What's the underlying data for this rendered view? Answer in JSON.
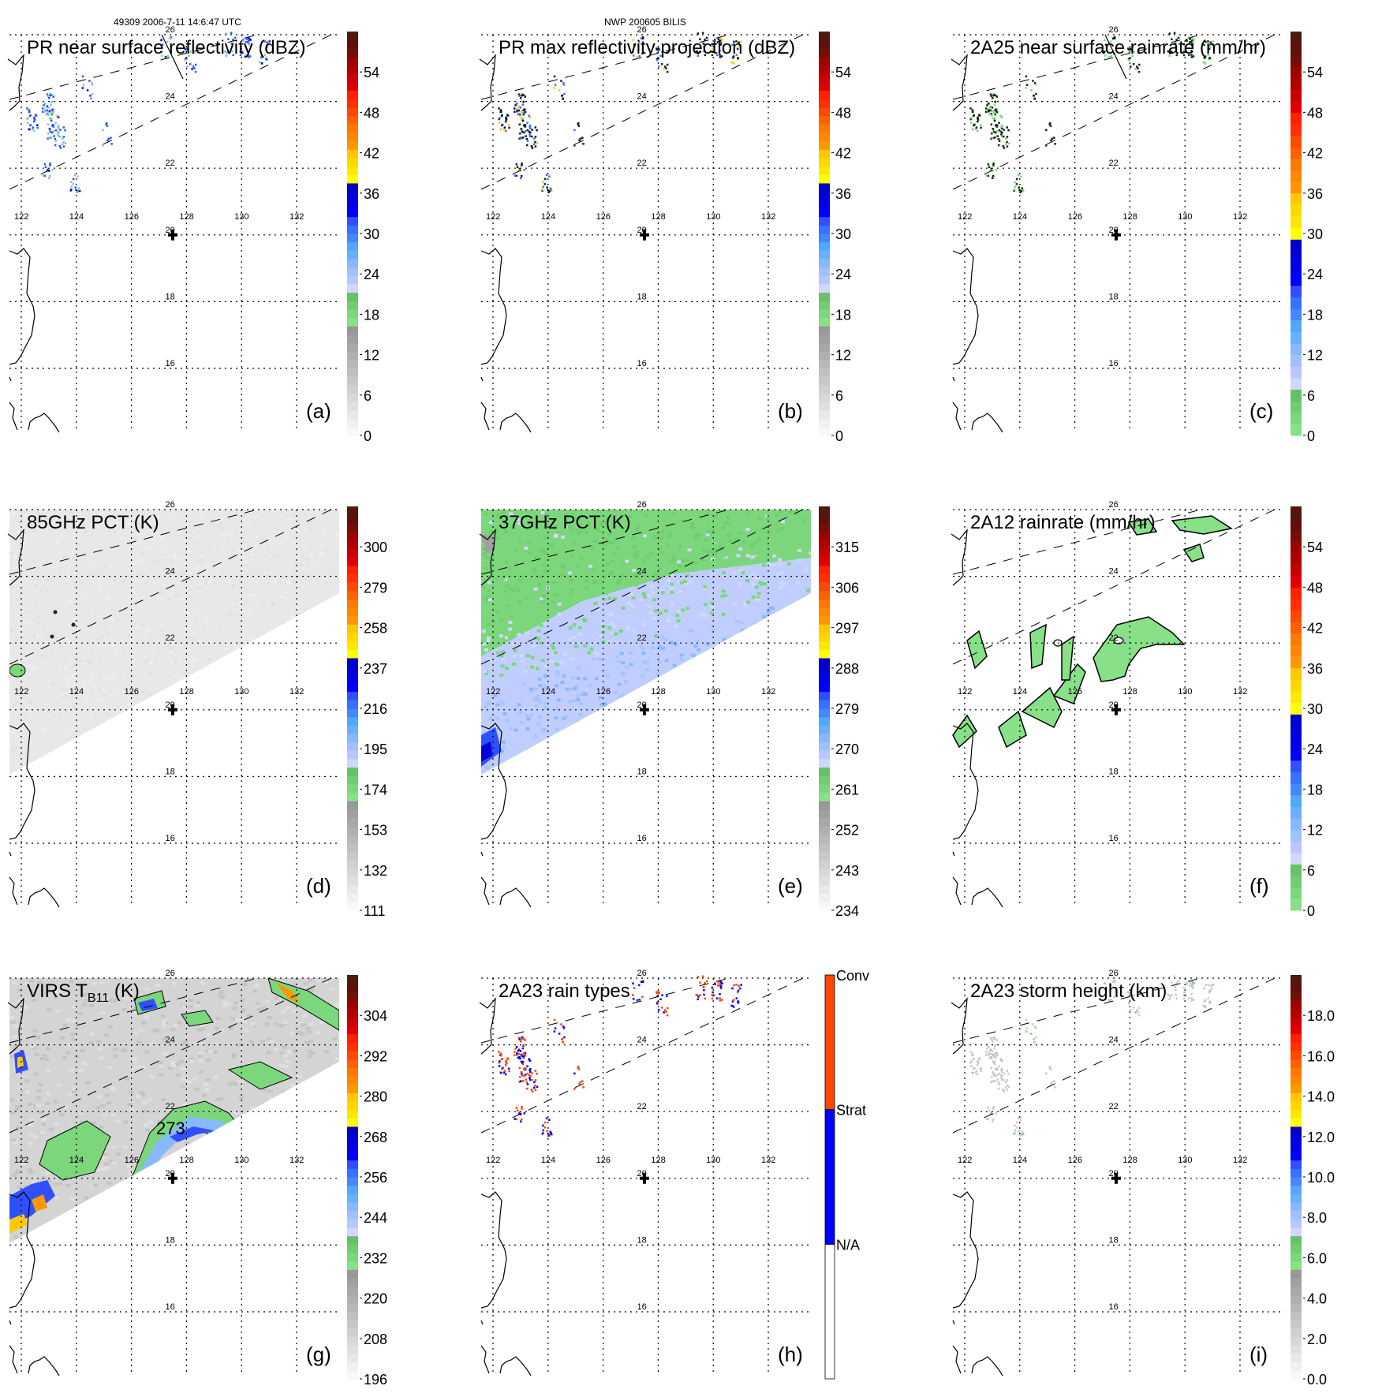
{
  "figure": {
    "header_left": "49309 2006-7-11 14:6:47 UTC",
    "header_center": "NWP 200605 BILIS"
  },
  "chart_data": [
    {
      "id": "a",
      "type": "heatmap",
      "letter": "(a)",
      "title": "PR near surface reflectivity (dBZ)",
      "colorbar": {
        "ticks": [
          "0",
          "6",
          "12",
          "18",
          "24",
          "30",
          "36",
          "42",
          "48",
          "54"
        ],
        "range": [
          0,
          60
        ]
      },
      "xlabel_ticks": [
        "122",
        "124",
        "126",
        "128",
        "130",
        "132"
      ],
      "ylabel_ticks": [
        "26",
        "24",
        "22",
        "20",
        "18",
        "16"
      ],
      "data_kind": "pr_scatter",
      "swath": "pr"
    },
    {
      "id": "b",
      "type": "heatmap",
      "letter": "(b)",
      "title": "PR max reflectivity projection (dBZ)",
      "colorbar": {
        "ticks": [
          "0",
          "6",
          "12",
          "18",
          "24",
          "30",
          "36",
          "42",
          "48",
          "54"
        ],
        "range": [
          0,
          60
        ]
      },
      "xlabel_ticks": [
        "122",
        "124",
        "126",
        "128",
        "130",
        "132"
      ],
      "ylabel_ticks": [
        "26",
        "24",
        "22",
        "20",
        "18",
        "16"
      ],
      "data_kind": "pr_contour",
      "swath": "pr"
    },
    {
      "id": "c",
      "type": "heatmap",
      "letter": "(c)",
      "title": "2A25 near surface rainrate (mm/hr)",
      "colorbar": {
        "ticks": [
          "0",
          "6",
          "12",
          "18",
          "24",
          "30",
          "36",
          "42",
          "48",
          "54"
        ],
        "range": [
          0,
          60
        ]
      },
      "xlabel_ticks": [
        "122",
        "124",
        "126",
        "128",
        "130",
        "132"
      ],
      "ylabel_ticks": [
        "26",
        "24",
        "22",
        "20",
        "18",
        "16"
      ],
      "data_kind": "pr_contour_green",
      "swath": "pr"
    },
    {
      "id": "d",
      "type": "heatmap",
      "letter": "(d)",
      "title": "85GHz PCT (K)",
      "colorbar": {
        "ticks": [
          "111",
          "132",
          "153",
          "174",
          "195",
          "216",
          "237",
          "258",
          "279",
          "300"
        ],
        "range": [
          300,
          90
        ]
      },
      "xlabel_ticks": [
        "122",
        "124",
        "126",
        "128",
        "130",
        "132"
      ],
      "ylabel_ticks": [
        "26",
        "24",
        "22",
        "20",
        "18",
        "16"
      ],
      "data_kind": "tmi_gray"
    },
    {
      "id": "e",
      "type": "heatmap",
      "letter": "(e)",
      "title": "37GHz PCT (K)",
      "colorbar": {
        "ticks": [
          "234",
          "243",
          "252",
          "261",
          "270",
          "279",
          "288",
          "297",
          "306",
          "315"
        ],
        "range": [
          315,
          225
        ]
      },
      "xlabel_ticks": [
        "122",
        "124",
        "126",
        "128",
        "130",
        "132"
      ],
      "ylabel_ticks": [
        "26",
        "24",
        "22",
        "20",
        "18",
        "16"
      ],
      "data_kind": "tmi_37"
    },
    {
      "id": "f",
      "type": "heatmap",
      "letter": "(f)",
      "title": "2A12 rainrate (mm/hr)",
      "colorbar": {
        "ticks": [
          "0",
          "6",
          "12",
          "18",
          "24",
          "30",
          "36",
          "42",
          "48",
          "54"
        ],
        "range": [
          0,
          60
        ]
      },
      "xlabel_ticks": [
        "122",
        "124",
        "126",
        "128",
        "130",
        "132"
      ],
      "ylabel_ticks": [
        "26",
        "24",
        "22",
        "20",
        "18",
        "16"
      ],
      "data_kind": "tmi_rain"
    },
    {
      "id": "g",
      "type": "heatmap",
      "letter": "(g)",
      "title_main": "VIRS T",
      "title_sub": "B11",
      "title_unit": " (K)",
      "contour_label": "273",
      "colorbar": {
        "ticks": [
          "196",
          "208",
          "220",
          "232",
          "244",
          "256",
          "268",
          "280",
          "292",
          "304"
        ],
        "range": [
          304,
          184
        ]
      },
      "xlabel_ticks": [
        "122",
        "124",
        "126",
        "128",
        "130",
        "132"
      ],
      "ylabel_ticks": [
        "26",
        "24",
        "22",
        "20",
        "18",
        "16"
      ],
      "data_kind": "virs"
    },
    {
      "id": "h",
      "type": "heatmap",
      "letter": "(h)",
      "title": "2A23 rain types",
      "colorbar": {
        "categories": [
          "N/A",
          "Strat",
          "Conv"
        ],
        "colors": [
          "#ffffff",
          "#0000ff",
          "#ff4500"
        ]
      },
      "xlabel_ticks": [
        "122",
        "124",
        "126",
        "128",
        "130",
        "132"
      ],
      "ylabel_ticks": [
        "26",
        "24",
        "22",
        "20",
        "18",
        "16"
      ],
      "data_kind": "raintype",
      "swath": "pr"
    },
    {
      "id": "i",
      "type": "heatmap",
      "letter": "(i)",
      "title": "2A23 storm height (km)",
      "colorbar": {
        "ticks": [
          "0.0",
          "2.0",
          "4.0",
          "6.0",
          "8.0",
          "10.0",
          "12.0",
          "14.0",
          "16.0",
          "18.0"
        ],
        "range": [
          0,
          20
        ]
      },
      "xlabel_ticks": [
        "122",
        "124",
        "126",
        "128",
        "130",
        "132"
      ],
      "ylabel_ticks": [
        "26",
        "24",
        "22",
        "20",
        "18",
        "16"
      ],
      "data_kind": "height",
      "swath": "pr"
    }
  ],
  "map": {
    "lon_range": [
      121.6,
      133.6
    ],
    "lat_range": [
      14.8,
      26.1
    ],
    "storm_center": {
      "lon": 127.5,
      "lat": 20.0,
      "label": "20"
    }
  },
  "colormaps": {
    "standard": [
      "#f8f8f8",
      "#f0f0f0",
      "#e8e8e8",
      "#e0e0e0",
      "#d8d8d8",
      "#d0d0d0",
      "#c8c8c8",
      "#c0c0c0",
      "#b8b8b8",
      "#b0b0b0",
      "#a8a8a8",
      "#a0a0a0",
      "#989898",
      "#88e088",
      "#7cd67c",
      "#72cc72",
      "#68c068",
      "#d0d8ff",
      "#b8c8ff",
      "#a0c0ff",
      "#88b8ff",
      "#6ab0ff",
      "#50a8ff",
      "#4488ff",
      "#3870ff",
      "#3050ff",
      "#0000ff",
      "#0000e8",
      "#0000d8",
      "#0000c8",
      "#ffff00",
      "#ffe800",
      "#ffd800",
      "#ffc800",
      "#ff9800",
      "#ff8800",
      "#ff7800",
      "#ff6000",
      "#ff4800",
      "#ff3000",
      "#ff2000",
      "#e00000",
      "#c80000",
      "#b00000",
      "#a00000",
      "#701008",
      "#601008",
      "#501810"
    ],
    "rain": [
      "#88e088",
      "#7cd67c",
      "#72cc72",
      "#68c068",
      "#d0d8ff",
      "#b8c8ff",
      "#a0c0ff",
      "#88b8ff",
      "#6ab0ff",
      "#50a8ff",
      "#4488ff",
      "#3870ff",
      "#3050ff",
      "#0000ff",
      "#0000e8",
      "#0000d8",
      "#0000c8",
      "#ffff00",
      "#ffe800",
      "#ffd800",
      "#ffc800",
      "#ff9800",
      "#ff8800",
      "#ff7800",
      "#ff6000",
      "#ff4800",
      "#ff3000",
      "#ff2000",
      "#e00000",
      "#c80000",
      "#b00000",
      "#a00000",
      "#701008",
      "#601008",
      "#501810"
    ]
  }
}
